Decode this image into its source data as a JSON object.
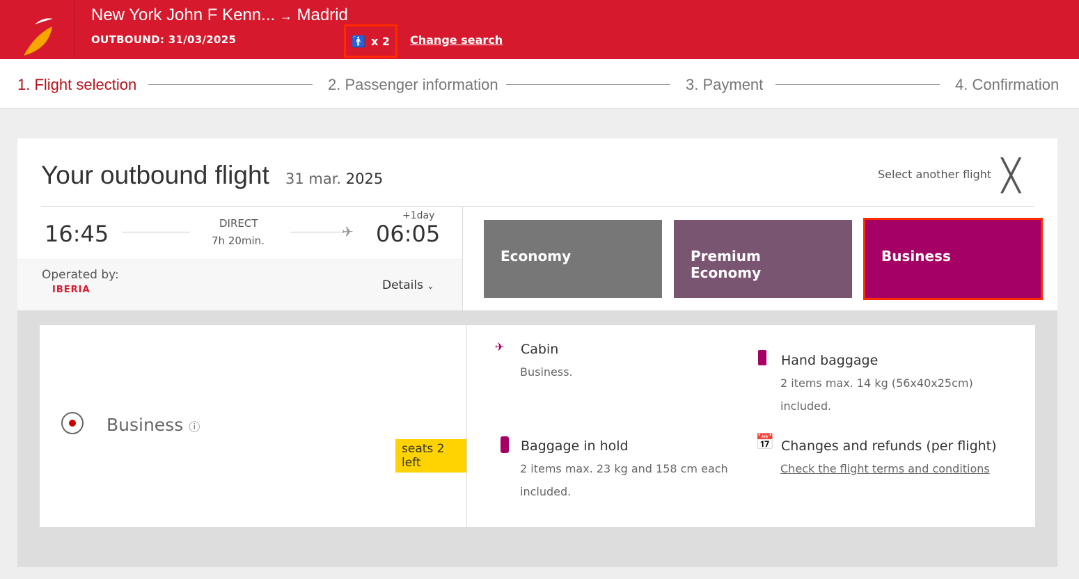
{
  "header": {
    "route_from": "New York John F Kenn...",
    "arrow": "→",
    "route_to": "Madrid",
    "outbound": "OUTBOUND: 31/03/2025",
    "passengers": "x 2",
    "change_search": "Change search"
  },
  "steps": [
    "1. Flight selection",
    "2. Passenger information",
    "3. Payment",
    "4. Confirmation"
  ],
  "flight": {
    "title": "Your outbound flight",
    "date_a": "31 mar.",
    "date_b": "2025",
    "select_another": "Select another flight",
    "dep": "16:45",
    "type": "DIRECT",
    "duration": "7h 20min.",
    "plus_day": "+1day",
    "arr": "06:05",
    "operated_by": "Operated by:",
    "airline": "IBERIA",
    "details": "Details"
  },
  "fares": [
    {
      "label": "Economy",
      "color": "#777777"
    },
    {
      "label": "Premium Economy",
      "color": "#7a5572"
    },
    {
      "label": "Business",
      "color": "#a50063",
      "selected": true
    }
  ],
  "selected": {
    "label": "Business",
    "seats": "seats 2 left"
  },
  "features": {
    "cabin_title": "Cabin",
    "cabin_desc": "Business.",
    "hand_title": "Hand baggage",
    "hand_desc1": "2 items max. 14 kg (56x40x25cm)",
    "hand_desc2": "included.",
    "hold_title": "Baggage in hold",
    "hold_desc1": "2 items max. 23 kg and 158 cm each",
    "hold_desc2": "included.",
    "changes_title": "Changes and refunds (per flight)",
    "changes_link": "Check the flight terms and conditions"
  },
  "colors": {
    "brand": "#d7192d",
    "accent": "#a50063"
  }
}
